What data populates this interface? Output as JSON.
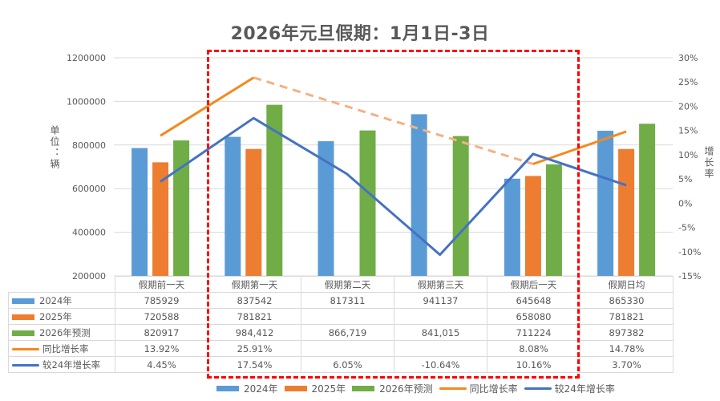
{
  "title": "2026年元旦假期：1月1日-3日",
  "left_axis_label": "单位：辆",
  "right_axis_label": "增长率",
  "colors": {
    "y2024": "#5b9bd5",
    "y2025": "#ed7d31",
    "y2026": "#70ad47",
    "yoy": "#f28a1d",
    "yoy_dashed": "#f4b183",
    "vs24": "#4472c4",
    "highlight": "#ff0000"
  },
  "table": {
    "categories": [
      "假期前一天",
      "假期第一天",
      "假期第二天",
      "假期第三天",
      "假期后一天",
      "假期日均"
    ],
    "rows": [
      {
        "label": "2024年",
        "values": [
          "785929",
          "837542",
          "817311",
          "941137",
          "645648",
          "865330"
        ]
      },
      {
        "label": "2025年",
        "values": [
          "720588",
          "781821",
          "",
          "",
          "658080",
          "781821"
        ]
      },
      {
        "label": "2026年预测",
        "values": [
          "820917",
          "984,412",
          "866,719",
          "841,015",
          "711224",
          "897382"
        ]
      },
      {
        "label": "同比增长率",
        "values": [
          "13.92%",
          "25.91%",
          "",
          "",
          "8.08%",
          "14.78%"
        ]
      },
      {
        "label": "较24年增长率",
        "values": [
          "4.45%",
          "17.54%",
          "6.05%",
          "-10.64%",
          "10.16%",
          "3.70%"
        ]
      }
    ]
  },
  "legend": [
    "2024年",
    "2025年",
    "2026年预测",
    "同比增长率",
    "较24年增长率"
  ],
  "chart_data": {
    "type": "bar",
    "title": "2026年元旦假期：1月1日-3日",
    "categories": [
      "假期前一天",
      "假期第一天",
      "假期第二天",
      "假期第三天",
      "假期后一天",
      "假期日均"
    ],
    "series": [
      {
        "name": "2024年",
        "type": "bar",
        "axis": "left",
        "values": [
          785929,
          837542,
          817311,
          941137,
          645648,
          865330
        ]
      },
      {
        "name": "2025年",
        "type": "bar",
        "axis": "left",
        "values": [
          720588,
          781821,
          null,
          null,
          658080,
          781821
        ]
      },
      {
        "name": "2026年预测",
        "type": "bar",
        "axis": "left",
        "values": [
          820917,
          984412,
          866719,
          841015,
          711224,
          897382
        ]
      },
      {
        "name": "同比增长率",
        "type": "line",
        "axis": "right",
        "values": [
          13.92,
          25.91,
          null,
          null,
          8.08,
          14.78
        ],
        "note": "dashed segment connects 假期第一天 to 假期后一天"
      },
      {
        "name": "较24年增长率",
        "type": "line",
        "axis": "right",
        "values": [
          4.45,
          17.54,
          6.05,
          -10.64,
          10.16,
          3.7
        ]
      }
    ],
    "ylabel": "单位：辆",
    "y2label": "增长率",
    "ylim": [
      200000,
      1200000
    ],
    "yticks": [
      200000,
      400000,
      600000,
      800000,
      1000000,
      1200000
    ],
    "y2lim": [
      -15,
      30
    ],
    "y2ticks": [
      "-15%",
      "-10%",
      "-5%",
      "0%",
      "5%",
      "10%",
      "15%",
      "20%",
      "25%",
      "30%"
    ],
    "grid": true,
    "legend_position": "bottom",
    "annotation": "red dashed box highlighting 假期第一天 through 假期后一天"
  }
}
